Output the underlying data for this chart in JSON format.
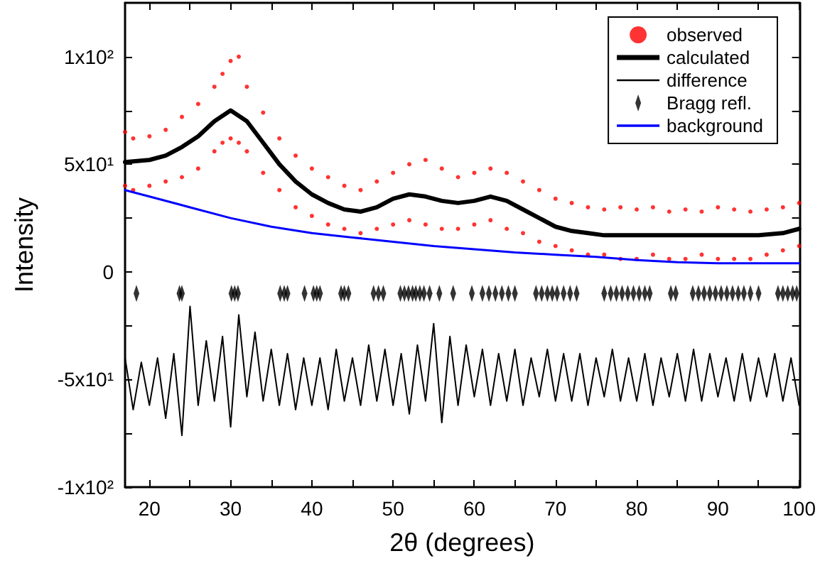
{
  "chart_data": {
    "type": "line",
    "xlabel": "2θ (degrees)",
    "ylabel": "Intensity",
    "xlim": [
      17,
      100
    ],
    "ylim": [
      -100,
      125
    ],
    "xticks": [
      20,
      {
        "value": 25,
        "label": null
      },
      30,
      {
        "value": 35,
        "label": null
      },
      40,
      {
        "value": 45,
        "label": null
      },
      50,
      {
        "value": 55,
        "label": null
      },
      60,
      {
        "value": 65,
        "label": null
      },
      70,
      {
        "value": 75,
        "label": null
      },
      80,
      {
        "value": 85,
        "label": null
      },
      90,
      {
        "value": 95,
        "label": null
      },
      100
    ],
    "yticks": [
      {
        "value": -100,
        "label": "-1x10²"
      },
      {
        "value": -75,
        "label": null
      },
      {
        "value": -50,
        "label": "-5x10¹"
      },
      {
        "value": -25,
        "label": null
      },
      0,
      {
        "value": 25,
        "label": null
      },
      {
        "value": 50,
        "label": "5x10¹"
      },
      {
        "value": 75,
        "label": null
      },
      {
        "value": 100,
        "label": "1x10²"
      }
    ],
    "grid": false,
    "legend": "top right",
    "series": [
      {
        "name": "observed",
        "type": "scatter",
        "marker": "circle",
        "color": "#ff0000",
        "x": [
          17,
          17,
          18,
          18,
          20,
          20,
          22,
          22,
          24,
          24,
          26,
          26,
          28,
          28,
          29,
          29,
          30,
          30,
          31,
          31,
          32,
          32,
          34,
          34,
          36,
          36,
          38,
          38,
          40,
          40,
          42,
          42,
          44,
          44,
          46,
          46,
          48,
          48,
          50,
          50,
          52,
          52,
          54,
          54,
          56,
          56,
          58,
          58,
          60,
          60,
          62,
          62,
          64,
          64,
          66,
          66,
          68,
          68,
          70,
          70,
          72,
          72,
          74,
          74,
          76,
          76,
          78,
          78,
          80,
          80,
          82,
          82,
          84,
          84,
          86,
          86,
          88,
          88,
          90,
          90,
          92,
          92,
          94,
          94,
          96,
          96,
          98,
          98,
          100,
          100
        ],
        "values": [
          65,
          40,
          62,
          38,
          63,
          40,
          66,
          42,
          72,
          44,
          78,
          48,
          86,
          56,
          92,
          60,
          98,
          62,
          100,
          60,
          86,
          56,
          74,
          46,
          62,
          38,
          54,
          30,
          48,
          26,
          44,
          22,
          40,
          20,
          38,
          18,
          42,
          20,
          46,
          22,
          50,
          24,
          52,
          22,
          48,
          20,
          44,
          20,
          46,
          22,
          48,
          24,
          46,
          20,
          42,
          18,
          38,
          14,
          34,
          12,
          32,
          10,
          30,
          8,
          29,
          8,
          30,
          6,
          29,
          6,
          30,
          8,
          28,
          6,
          29,
          6,
          28,
          8,
          30,
          6,
          29,
          6,
          28,
          6,
          29,
          8,
          30,
          10,
          32,
          12
        ]
      },
      {
        "name": "calculated",
        "color": "#000000",
        "x": [
          17,
          20,
          22,
          24,
          26,
          28,
          30,
          32,
          34,
          36,
          38,
          40,
          42,
          44,
          46,
          48,
          50,
          52,
          54,
          56,
          58,
          60,
          62,
          64,
          66,
          68,
          70,
          72,
          74,
          76,
          80,
          85,
          90,
          95,
          98,
          100
        ],
        "values": [
          51,
          52,
          54,
          58,
          63,
          70,
          75,
          70,
          60,
          50,
          42,
          36,
          32,
          29,
          28,
          30,
          34,
          36,
          35,
          33,
          32,
          33,
          35,
          33,
          29,
          25,
          21,
          19,
          18,
          17,
          17,
          17,
          17,
          17,
          18,
          20
        ]
      },
      {
        "name": "difference",
        "color": "#000000",
        "x": [
          17,
          18,
          19,
          20,
          21,
          22,
          23,
          24,
          25,
          26,
          27,
          28,
          29,
          30,
          31,
          32,
          33,
          34,
          35,
          36,
          37,
          38,
          39,
          40,
          41,
          42,
          43,
          44,
          45,
          46,
          47,
          48,
          49,
          50,
          51,
          52,
          53,
          54,
          55,
          56,
          57,
          58,
          59,
          60,
          61,
          62,
          63,
          64,
          65,
          66,
          67,
          68,
          69,
          70,
          71,
          72,
          73,
          74,
          75,
          76,
          77,
          78,
          79,
          80,
          81,
          82,
          83,
          84,
          85,
          86,
          87,
          88,
          89,
          90,
          91,
          92,
          93,
          94,
          95,
          96,
          97,
          98,
          99,
          100
        ],
        "values": [
          -40,
          -64,
          -42,
          -62,
          -40,
          -68,
          -38,
          -76,
          -16,
          -62,
          -32,
          -60,
          -30,
          -72,
          -20,
          -58,
          -28,
          -60,
          -36,
          -62,
          -38,
          -64,
          -40,
          -62,
          -40,
          -64,
          -36,
          -60,
          -40,
          -62,
          -34,
          -60,
          -36,
          -62,
          -38,
          -66,
          -34,
          -60,
          -24,
          -70,
          -30,
          -62,
          -34,
          -58,
          -36,
          -62,
          -38,
          -60,
          -36,
          -62,
          -40,
          -58,
          -36,
          -60,
          -38,
          -60,
          -38,
          -62,
          -40,
          -58,
          -36,
          -60,
          -40,
          -60,
          -38,
          -62,
          -40,
          -58,
          -38,
          -60,
          -36,
          -60,
          -38,
          -58,
          -40,
          -60,
          -38,
          -60,
          -40,
          -58,
          -38,
          -60,
          -40,
          -62
        ]
      },
      {
        "name": "Bragg refl.",
        "type": "scatter",
        "marker": "diamond",
        "color": "#000000",
        "x": [
          18.4,
          23.7,
          24.0,
          30.1,
          30.5,
          30.9,
          36.1,
          36.6,
          37.0,
          39.1,
          40.2,
          40.6,
          41.0,
          43.6,
          44.0,
          44.5,
          47.6,
          48.2,
          48.8,
          50.9,
          51.4,
          51.9,
          52.4,
          52.8,
          53.3,
          53.8,
          54.5,
          55.7,
          57.4,
          59.7,
          61.0,
          61.8,
          62.6,
          63.4,
          64.2,
          65.0,
          67.6,
          68.3,
          69.0,
          69.6,
          70.2,
          71.0,
          71.8,
          72.6,
          76.0,
          76.8,
          77.5,
          78.2,
          78.9,
          79.6,
          80.3,
          81.0,
          81.6,
          84.2,
          84.8,
          86.9,
          87.6,
          88.3,
          89.0,
          89.7,
          90.4,
          91.1,
          91.8,
          92.5,
          93.2,
          94.0,
          95.0,
          97.4,
          98.0,
          98.6,
          99.2,
          99.7
        ],
        "values": [
          -10,
          -10,
          -10,
          -10,
          -10,
          -10,
          -10,
          -10,
          -10,
          -10,
          -10,
          -10,
          -10,
          -10,
          -10,
          -10,
          -10,
          -10,
          -10,
          -10,
          -10,
          -10,
          -10,
          -10,
          -10,
          -10,
          -10,
          -10,
          -10,
          -10,
          -10,
          -10,
          -10,
          -10,
          -10,
          -10,
          -10,
          -10,
          -10,
          -10,
          -10,
          -10,
          -10,
          -10,
          -10,
          -10,
          -10,
          -10,
          -10,
          -10,
          -10,
          -10,
          -10,
          -10,
          -10,
          -10,
          -10,
          -10,
          -10,
          -10,
          -10,
          -10,
          -10,
          -10,
          -10,
          -10,
          -10,
          -10,
          -10,
          -10,
          -10,
          -10
        ]
      },
      {
        "name": "background",
        "color": "#0000ff",
        "x": [
          17,
          20,
          25,
          30,
          35,
          40,
          45,
          50,
          55,
          60,
          65,
          70,
          75,
          80,
          85,
          90,
          95,
          100
        ],
        "values": [
          38,
          35,
          30,
          25,
          21,
          18,
          16,
          14,
          12,
          10.5,
          9,
          8,
          7,
          5.5,
          4.5,
          4,
          4,
          4
        ]
      }
    ]
  }
}
